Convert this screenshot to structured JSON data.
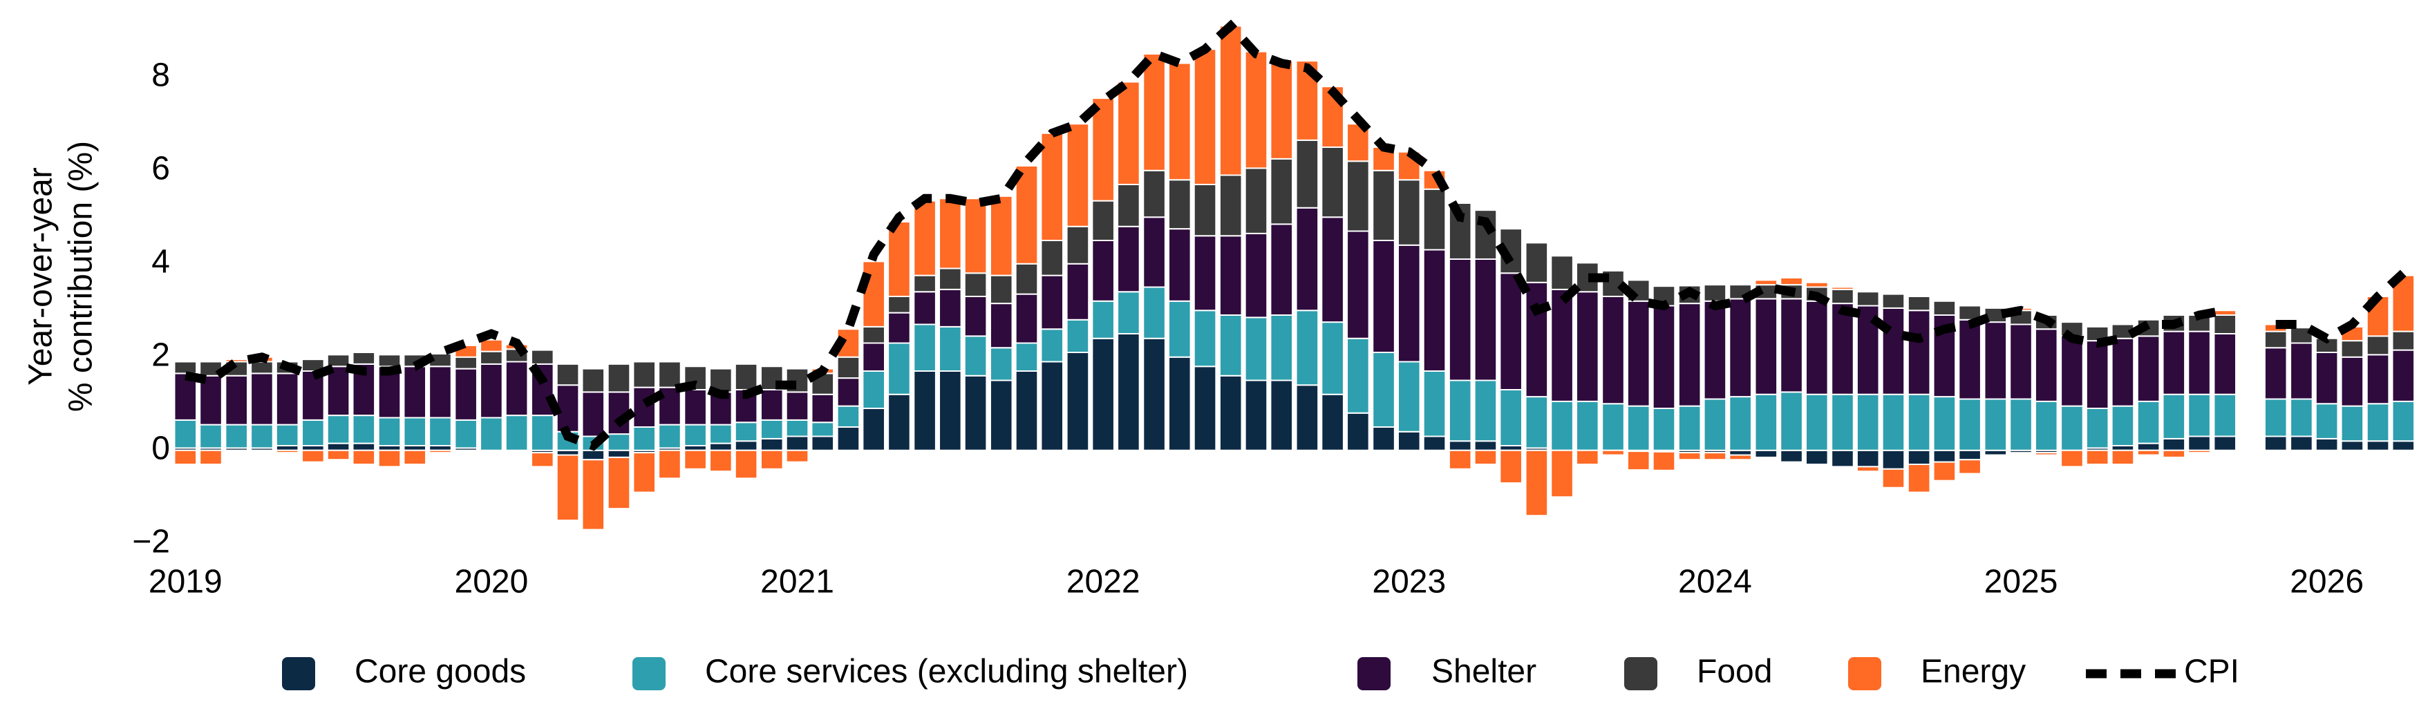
{
  "chart_data": {
    "type": "bar",
    "stacked": true,
    "y_label": [
      "Year-over-year",
      "% contribution (%)"
    ],
    "x": [
      2019,
      2019.083,
      2019.167,
      2019.25,
      2019.333,
      2019.417,
      2019.5,
      2019.583,
      2019.667,
      2019.75,
      2019.833,
      2019.917,
      2020,
      2020.083,
      2020.167,
      2020.25,
      2020.333,
      2020.417,
      2020.5,
      2020.583,
      2020.667,
      2020.75,
      2020.833,
      2020.917,
      2021,
      2021.083,
      2021.167,
      2021.25,
      2021.333,
      2021.417,
      2021.5,
      2021.583,
      2021.667,
      2021.75,
      2021.833,
      2021.917,
      2022,
      2022.083,
      2022.167,
      2022.25,
      2022.333,
      2022.417,
      2022.5,
      2022.583,
      2022.667,
      2022.75,
      2022.833,
      2022.917,
      2023,
      2023.083,
      2023.167,
      2023.25,
      2023.333,
      2023.417,
      2023.5,
      2023.583,
      2023.667,
      2023.75,
      2023.833,
      2023.917,
      2024,
      2024.083,
      2024.167,
      2024.25,
      2024.333,
      2024.417,
      2024.5,
      2024.583,
      2024.667,
      2024.75,
      2024.833,
      2024.917,
      2025,
      2025.083,
      2025.167,
      2025.25,
      2025.333,
      2025.417,
      2025.5,
      2025.583,
      2025.667,
      2025.75,
      2025.833,
      2025.917,
      2026,
      2026.083,
      2026.167,
      2026.25
    ],
    "xlim": [
      2018.97,
      2026.29
    ],
    "xticks": [
      2019,
      2020,
      2021,
      2022,
      2023,
      2024,
      2025,
      2026
    ],
    "ylim": [
      -2.3,
      9.3
    ],
    "yticks": [
      {
        "value": -2,
        "label": "−2"
      },
      0,
      2,
      4,
      6,
      8
    ],
    "grid": false,
    "legend": "bottom",
    "series": [
      {
        "name": "Core goods",
        "color": "#0d2a45",
        "values": [
          0.05,
          0.05,
          0.05,
          0.05,
          0.1,
          0.1,
          0.15,
          0.15,
          0.1,
          0.1,
          0.1,
          0.05,
          0,
          0,
          -0.05,
          -0.1,
          -0.2,
          -0.15,
          -0.05,
          0.05,
          0.1,
          0.15,
          0.2,
          0.25,
          0.3,
          0.3,
          0.5,
          0.9,
          1.2,
          1.7,
          1.7,
          1.6,
          1.5,
          1.7,
          1.9,
          2.1,
          2.4,
          2.5,
          2.4,
          2.0,
          1.8,
          1.6,
          1.5,
          1.5,
          1.4,
          1.2,
          0.8,
          0.5,
          0.4,
          0.3,
          0.2,
          0.2,
          0.1,
          0.05,
          0,
          0,
          0,
          -0.02,
          -0.03,
          -0.05,
          -0.05,
          -0.1,
          -0.15,
          -0.25,
          -0.3,
          -0.35,
          -0.35,
          -0.4,
          -0.3,
          -0.25,
          -0.2,
          -0.1,
          -0.05,
          -0.05,
          0,
          0.05,
          0.1,
          0.15,
          0.25,
          0.3,
          0.3,
          null,
          0.3,
          0.3,
          0.25,
          0.2,
          0.2,
          0.2
        ]
      },
      {
        "name": "Core services (excluding shelter)",
        "color": "#2e9fae",
        "values": [
          0.6,
          0.5,
          0.5,
          0.5,
          0.45,
          0.55,
          0.6,
          0.6,
          0.6,
          0.6,
          0.6,
          0.6,
          0.7,
          0.75,
          0.75,
          0.4,
          0.3,
          0.35,
          0.5,
          0.5,
          0.45,
          0.4,
          0.4,
          0.4,
          0.35,
          0.3,
          0.45,
          0.8,
          1.1,
          1.0,
          0.95,
          0.85,
          0.7,
          0.6,
          0.7,
          0.7,
          0.8,
          0.9,
          1.1,
          1.2,
          1.2,
          1.3,
          1.35,
          1.4,
          1.6,
          1.55,
          1.6,
          1.6,
          1.5,
          1.4,
          1.3,
          1.3,
          1.2,
          1.1,
          1.05,
          1.05,
          1.0,
          0.95,
          0.9,
          0.95,
          1.1,
          1.15,
          1.2,
          1.25,
          1.2,
          1.2,
          1.2,
          1.2,
          1.2,
          1.15,
          1.1,
          1.1,
          1.1,
          1.05,
          0.95,
          0.85,
          0.85,
          0.9,
          0.95,
          0.9,
          0.9,
          null,
          0.8,
          0.8,
          0.75,
          0.75,
          0.8,
          0.85
        ]
      },
      {
        "name": "Shelter",
        "color": "#2e0a3d",
        "values": [
          1.0,
          1.05,
          1.05,
          1.1,
          1.1,
          1.05,
          1.05,
          1.1,
          1.1,
          1.1,
          1.1,
          1.1,
          1.15,
          1.15,
          1.1,
          1.0,
          0.95,
          0.9,
          0.85,
          0.8,
          0.75,
          0.7,
          0.7,
          0.65,
          0.6,
          0.6,
          0.6,
          0.6,
          0.65,
          0.7,
          0.8,
          0.85,
          0.95,
          1.05,
          1.15,
          1.2,
          1.3,
          1.4,
          1.5,
          1.55,
          1.6,
          1.7,
          1.8,
          1.95,
          2.2,
          2.25,
          2.3,
          2.4,
          2.5,
          2.6,
          2.6,
          2.6,
          2.5,
          2.45,
          2.4,
          2.35,
          2.3,
          2.25,
          2.2,
          2.2,
          2.1,
          2.1,
          2.05,
          2.0,
          2.0,
          1.95,
          1.9,
          1.85,
          1.8,
          1.75,
          1.7,
          1.65,
          1.6,
          1.55,
          1.5,
          1.45,
          1.45,
          1.4,
          1.35,
          1.35,
          1.3,
          null,
          1.1,
          1.2,
          1.1,
          1.05,
          1.05,
          1.1
        ]
      },
      {
        "name": "Food",
        "color": "#3a3a3a",
        "values": [
          0.25,
          0.3,
          0.3,
          0.25,
          0.25,
          0.25,
          0.25,
          0.25,
          0.25,
          0.25,
          0.27,
          0.25,
          0.27,
          0.27,
          0.3,
          0.45,
          0.5,
          0.6,
          0.55,
          0.55,
          0.5,
          0.5,
          0.55,
          0.5,
          0.5,
          0.45,
          0.45,
          0.35,
          0.35,
          0.35,
          0.45,
          0.5,
          0.6,
          0.65,
          0.75,
          0.8,
          0.85,
          0.9,
          1.0,
          1.05,
          1.1,
          1.3,
          1.4,
          1.4,
          1.45,
          1.5,
          1.5,
          1.5,
          1.4,
          1.3,
          1.2,
          1.05,
          0.95,
          0.85,
          0.72,
          0.62,
          0.55,
          0.45,
          0.42,
          0.38,
          0.35,
          0.3,
          0.3,
          0.3,
          0.3,
          0.3,
          0.3,
          0.3,
          0.3,
          0.3,
          0.3,
          0.3,
          0.3,
          0.3,
          0.3,
          0.3,
          0.3,
          0.35,
          0.35,
          0.35,
          0.4,
          null,
          0.35,
          0.33,
          0.3,
          0.35,
          0.4,
          0.4
        ]
      },
      {
        "name": "Energy",
        "color": "#ff6a25",
        "values": [
          -0.3,
          -0.3,
          0.05,
          0.1,
          -0.05,
          -0.25,
          -0.2,
          -0.3,
          -0.35,
          -0.3,
          -0.05,
          0.25,
          0.25,
          0.1,
          -0.3,
          -1.4,
          -1.5,
          -1.1,
          -0.85,
          -0.6,
          -0.4,
          -0.45,
          -0.6,
          -0.4,
          -0.25,
          0.1,
          0.6,
          1.4,
          1.6,
          1.6,
          1.5,
          1.6,
          1.7,
          2.1,
          2.3,
          2.2,
          2.2,
          2.2,
          2.5,
          2.5,
          2.9,
          3.2,
          2.5,
          2.1,
          1.7,
          1.3,
          0.8,
          0.5,
          0.6,
          0.4,
          -0.4,
          -0.3,
          -0.7,
          -1.4,
          -1.0,
          -0.3,
          -0.1,
          -0.4,
          -0.4,
          -0.15,
          -0.15,
          -0.1,
          0.1,
          0.15,
          0.1,
          0.05,
          -0.1,
          -0.4,
          -0.6,
          -0.4,
          -0.3,
          0,
          0.05,
          -0.05,
          -0.35,
          -0.3,
          -0.3,
          -0.1,
          -0.15,
          -0.05,
          0.1,
          null,
          0.15,
          0,
          0,
          0.3,
          0.85,
          1.2
        ]
      }
    ],
    "line": {
      "name": "CPI",
      "color": "#000000",
      "values": [
        1.6,
        1.5,
        1.9,
        2.0,
        1.8,
        1.6,
        1.8,
        1.7,
        1.7,
        1.8,
        2.1,
        2.3,
        2.5,
        2.3,
        1.5,
        0.3,
        0.1,
        0.6,
        1.0,
        1.3,
        1.4,
        1.2,
        1.2,
        1.4,
        1.4,
        1.7,
        2.6,
        4.2,
        5.0,
        5.4,
        5.4,
        5.3,
        5.4,
        6.2,
        6.8,
        7.0,
        7.5,
        7.9,
        8.5,
        8.3,
        8.6,
        9.1,
        8.5,
        8.3,
        8.2,
        7.7,
        7.1,
        6.5,
        6.4,
        6.0,
        5.0,
        4.9,
        4.0,
        3.0,
        3.2,
        3.7,
        3.7,
        3.2,
        3.1,
        3.4,
        3.1,
        3.2,
        3.5,
        3.4,
        3.3,
        3.0,
        2.9,
        2.5,
        2.4,
        2.6,
        2.7,
        2.9,
        3.0,
        2.8,
        2.4,
        2.3,
        2.4,
        2.7,
        2.7,
        2.9,
        3.0,
        null,
        2.7,
        2.7,
        2.4,
        2.7,
        3.3,
        3.8
      ]
    }
  }
}
